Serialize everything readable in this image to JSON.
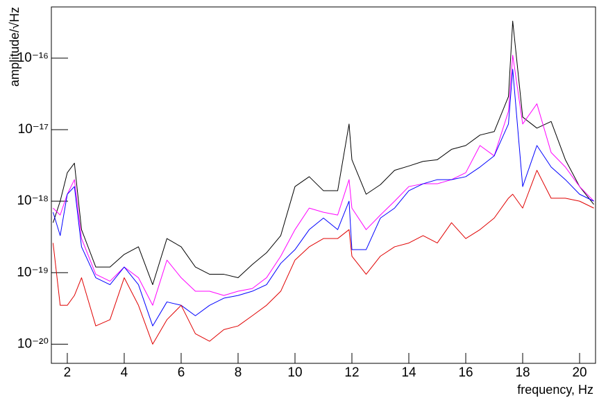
{
  "chart_data": {
    "type": "line",
    "xlabel": "frequency, Hz",
    "ylabel": "amplitude/√Hz",
    "log_y": true,
    "grid": false,
    "xlim": [
      1.44,
      20.56
    ],
    "ylim": [
      5.4e-21,
      5.2e-16
    ],
    "xticks": [
      2,
      4,
      6,
      8,
      10,
      12,
      14,
      16,
      18,
      20
    ],
    "yticks": [
      {
        "value": 1e-20,
        "label": "10⁻²⁰"
      },
      {
        "value": 1e-19,
        "label": "10⁻¹⁹"
      },
      {
        "value": 1e-18,
        "label": "10⁻¹⁸"
      },
      {
        "value": 1e-17,
        "label": "10⁻¹⁷"
      },
      {
        "value": 1e-16,
        "label": "10⁻¹⁶"
      }
    ],
    "x": [
      1.5,
      1.75,
      2,
      2.25,
      2.5,
      3,
      3.5,
      4,
      4.5,
      5,
      5.5,
      6,
      6.5,
      7,
      7.5,
      8,
      8.5,
      9,
      9.5,
      10,
      10.5,
      11,
      11.5,
      11.9,
      12,
      12.5,
      13,
      13.5,
      14,
      14.5,
      15,
      15.5,
      16,
      16.5,
      17,
      17.5,
      17.65,
      18,
      18.5,
      19,
      19.5,
      20,
      20.5
    ],
    "series": [
      {
        "color": "#000000",
        "values": [
          5e-19,
          1e-18,
          2.5e-18,
          3.4e-18,
          4e-19,
          1.2e-19,
          1.2e-19,
          1.8e-19,
          2.3e-19,
          6.8e-20,
          3e-19,
          2.3e-19,
          1.2e-19,
          9.5e-20,
          9.5e-20,
          8.5e-20,
          1.3e-19,
          1.9e-19,
          3.3e-19,
          1.6e-18,
          2.2e-18,
          1.4e-18,
          1.4e-18,
          1.2e-17,
          3.8e-18,
          1.25e-18,
          1.7e-18,
          2.7e-18,
          3.1e-18,
          3.6e-18,
          3.8e-18,
          5.3e-18,
          6e-18,
          8.4e-18,
          9.4e-18,
          2.9e-17,
          3.3e-16,
          1.5e-17,
          1.05e-17,
          1.3e-17,
          3.8e-18,
          1.6e-18,
          9e-19
        ]
      },
      {
        "color": "#ff00ff",
        "values": [
          8e-19,
          6.4e-19,
          1.25e-18,
          2e-18,
          3e-19,
          9.5e-20,
          7.6e-20,
          1.2e-19,
          8.5e-20,
          3.5e-20,
          1.5e-19,
          8.5e-20,
          5.5e-20,
          5.5e-20,
          4.8e-20,
          5.5e-20,
          6e-20,
          8.5e-20,
          1.7e-19,
          4e-19,
          8e-19,
          7e-19,
          6.4e-19,
          2e-18,
          8e-19,
          4e-19,
          6.4e-19,
          1e-18,
          1.6e-18,
          1.75e-18,
          1.75e-18,
          2e-18,
          2.5e-18,
          6e-18,
          4.3e-18,
          1.8e-17,
          1.1e-16,
          1.2e-17,
          2.3e-17,
          4.8e-18,
          3e-18,
          1.6e-18,
          1e-18
        ]
      },
      {
        "color": "#0000ff",
        "values": [
          7e-19,
          3.3e-19,
          1.25e-18,
          1.6e-18,
          2.3e-19,
          8.5e-20,
          6.8e-20,
          1.2e-19,
          6.8e-20,
          1.8e-20,
          3.9e-20,
          3.5e-20,
          2.5e-20,
          3.5e-20,
          4.4e-20,
          4.8e-20,
          5.5e-20,
          6.8e-20,
          1.35e-19,
          2.1e-19,
          4e-19,
          5.8e-19,
          4e-19,
          1e-18,
          2.1e-19,
          2.1e-19,
          5.8e-19,
          8e-19,
          1.4e-18,
          1.75e-18,
          2e-18,
          2e-18,
          2.2e-18,
          3e-18,
          4.3e-18,
          1.2e-17,
          7e-17,
          1.6e-18,
          6e-18,
          3e-18,
          2e-18,
          1.25e-18,
          1e-18
        ]
      },
      {
        "color": "#e00000",
        "values": [
          2.6e-19,
          3.5e-20,
          3.5e-20,
          4.8e-20,
          8.5e-20,
          1.8e-20,
          2.2e-20,
          8.5e-20,
          3.5e-20,
          1e-20,
          2.2e-20,
          3.5e-20,
          1.4e-20,
          1.1e-20,
          1.6e-20,
          1.8e-20,
          2.5e-20,
          3.5e-20,
          5.5e-20,
          1.5e-19,
          2.3e-19,
          3e-19,
          3e-19,
          4e-19,
          1.7e-19,
          9.5e-20,
          1.7e-19,
          2.3e-19,
          2.6e-19,
          3.3e-19,
          2.6e-19,
          5e-19,
          3e-19,
          4e-19,
          5.8e-19,
          1.1e-18,
          1.25e-18,
          8e-19,
          2.7e-18,
          1.1e-18,
          1.1e-18,
          1e-18,
          8e-19
        ]
      }
    ]
  }
}
